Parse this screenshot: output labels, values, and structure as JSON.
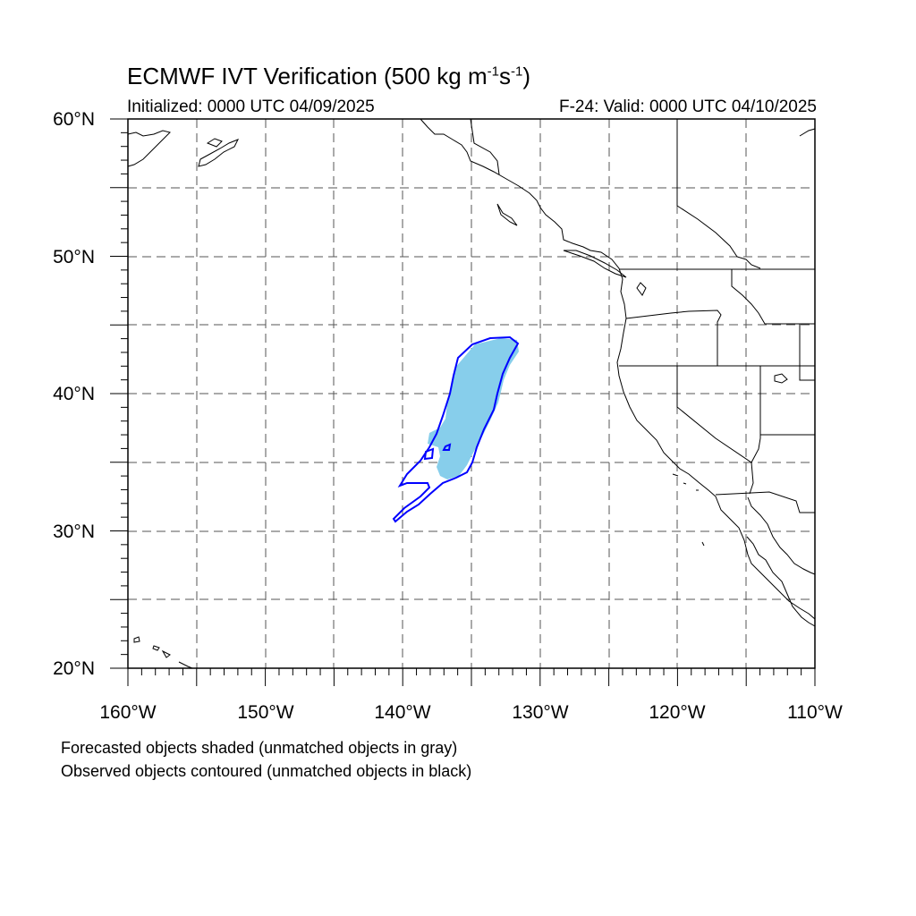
{
  "header": {
    "title_main": "ECMWF IVT Verification (500 kg m",
    "title_exp1": "-1",
    "title_mid": "s",
    "title_exp2": "-1",
    "title_end": ")",
    "initialized": "Initialized: 0000 UTC 04/09/2025",
    "valid": "F-24: Valid: 0000 UTC 04/10/2025"
  },
  "axes": {
    "lat_labels": [
      "60°N",
      "50°N",
      "40°N",
      "30°N",
      "20°N"
    ],
    "lon_labels": [
      "160°W",
      "150°W",
      "140°W",
      "130°W",
      "120°W",
      "110°W"
    ],
    "lat_range": [
      20,
      60
    ],
    "lon_range": [
      -160,
      -110
    ],
    "grid": "dashed every 5°"
  },
  "legend": {
    "line1": "Forecasted objects shaded (unmatched objects in gray)",
    "line2": "Observed objects contoured (unmatched objects in black)"
  },
  "colors": {
    "forecast_fill": "#87ceeb",
    "observed_contour": "#0000ff",
    "coastline": "#000000",
    "grid": "#555555"
  }
}
